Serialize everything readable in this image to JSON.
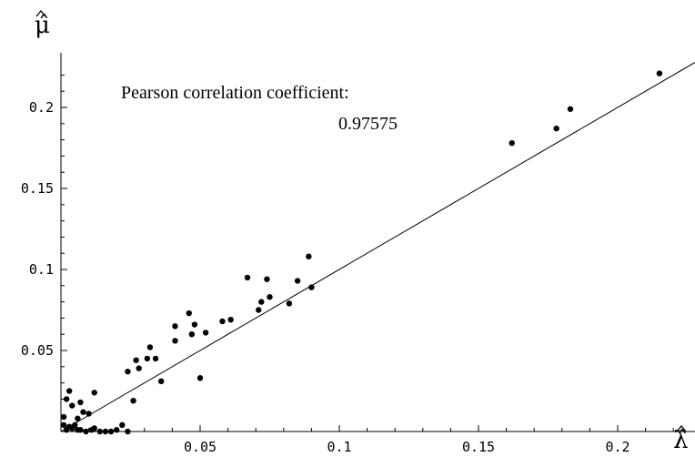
{
  "chart_data": {
    "type": "scatter",
    "title": "",
    "xlabel": "λ̂",
    "ylabel": "μ̂",
    "xlim": [
      0,
      0.23
    ],
    "ylim": [
      0,
      0.23
    ],
    "xticks": [
      0.05,
      0.1,
      0.15,
      0.2
    ],
    "xtick_labels": [
      "0.05",
      "0.1",
      "0.15",
      "0.2"
    ],
    "yticks": [
      0.05,
      0.1,
      0.15,
      0.2
    ],
    "ytick_labels": [
      "0.05",
      "0.1",
      "0.15",
      "0.2"
    ],
    "grid": false,
    "annotation": {
      "line1": "Pearson correlation coefficient:",
      "line2": "0.97575"
    },
    "fit_line": {
      "x": [
        0,
        0.23
      ],
      "y": [
        0.0,
        0.23
      ]
    },
    "points": [
      [
        0.001,
        0.009
      ],
      [
        0.002,
        0.02
      ],
      [
        0.003,
        0.025
      ],
      [
        0.004,
        0.016
      ],
      [
        0.006,
        0.008
      ],
      [
        0.007,
        0.018
      ],
      [
        0.008,
        0.012
      ],
      [
        0.01,
        0.011
      ],
      [
        0.012,
        0.024
      ],
      [
        0.001,
        0.004
      ],
      [
        0.002,
        0.001
      ],
      [
        0.003,
        0.003
      ],
      [
        0.004,
        0.002
      ],
      [
        0.005,
        0.004
      ],
      [
        0.006,
        0.001
      ],
      [
        0.007,
        0.001
      ],
      [
        0.009,
        0.0
      ],
      [
        0.011,
        0.001
      ],
      [
        0.012,
        0.002
      ],
      [
        0.014,
        0.0
      ],
      [
        0.016,
        0.0
      ],
      [
        0.018,
        0.0
      ],
      [
        0.02,
        0.001
      ],
      [
        0.022,
        0.004
      ],
      [
        0.024,
        0.0
      ],
      [
        0.024,
        0.037
      ],
      [
        0.026,
        0.019
      ],
      [
        0.027,
        0.044
      ],
      [
        0.028,
        0.039
      ],
      [
        0.031,
        0.045
      ],
      [
        0.032,
        0.052
      ],
      [
        0.034,
        0.045
      ],
      [
        0.036,
        0.031
      ],
      [
        0.041,
        0.056
      ],
      [
        0.041,
        0.065
      ],
      [
        0.046,
        0.073
      ],
      [
        0.047,
        0.06
      ],
      [
        0.048,
        0.066
      ],
      [
        0.05,
        0.033
      ],
      [
        0.052,
        0.061
      ],
      [
        0.058,
        0.068
      ],
      [
        0.061,
        0.069
      ],
      [
        0.067,
        0.095
      ],
      [
        0.071,
        0.075
      ],
      [
        0.072,
        0.08
      ],
      [
        0.074,
        0.094
      ],
      [
        0.075,
        0.083
      ],
      [
        0.082,
        0.079
      ],
      [
        0.085,
        0.093
      ],
      [
        0.089,
        0.108
      ],
      [
        0.09,
        0.089
      ],
      [
        0.162,
        0.178
      ],
      [
        0.178,
        0.187
      ],
      [
        0.183,
        0.199
      ],
      [
        0.215,
        0.221
      ]
    ]
  }
}
